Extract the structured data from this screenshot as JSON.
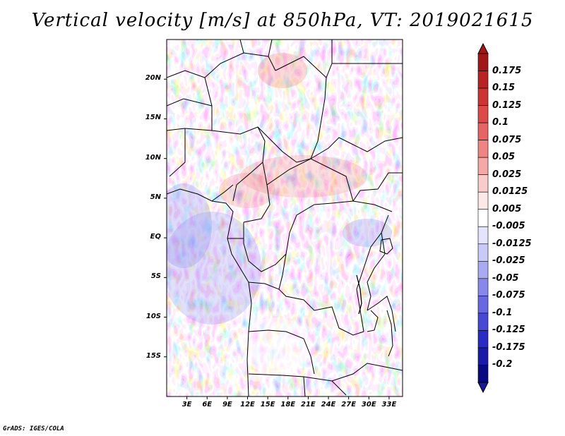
{
  "title": "Vertical velocity [m/s] at 850hPa, VT: 2019021615",
  "credit": "GrADS: IGES/COLA",
  "map": {
    "lon_range": [
      0,
      35
    ],
    "lat_range": [
      -20,
      25
    ],
    "lat_ticks": [
      "20N",
      "15N",
      "10N",
      "5N",
      "EQ",
      "5S",
      "10S",
      "15S"
    ],
    "lat_tick_values": [
      20,
      15,
      10,
      5,
      0,
      -5,
      -10,
      -15
    ],
    "lon_ticks": [
      "3E",
      "6E",
      "9E",
      "12E",
      "15E",
      "18E",
      "21E",
      "24E",
      "27E",
      "30E",
      "33E"
    ],
    "lon_tick_values": [
      3,
      6,
      9,
      12,
      15,
      18,
      21,
      24,
      27,
      30,
      33
    ],
    "field_colors": {
      "strong_up": "#c92a2a",
      "up": "#f08080",
      "weak_up": "#fbd0d0",
      "neutral": "#ffffff",
      "weak_down": "#d6d6fa",
      "down": "#8f8fef",
      "strong_down": "#3a3ad0"
    }
  },
  "colorbar": {
    "labels": [
      "0.175",
      "0.15",
      "0.125",
      "0.1",
      "0.075",
      "0.05",
      "0.025",
      "0.0125",
      "0.005",
      "-0.005",
      "-0.0125",
      "-0.025",
      "-0.05",
      "-0.075",
      "-0.1",
      "-0.125",
      "-0.175",
      "-0.2"
    ],
    "colors": [
      "#a01818",
      "#b82424",
      "#cc3434",
      "#dc4a4a",
      "#e66464",
      "#ee8484",
      "#f4a8a8",
      "#f9cccc",
      "#fde8e8",
      "#ffffff",
      "#e4e4fc",
      "#cacaf8",
      "#aaaaf2",
      "#8888ea",
      "#6868e0",
      "#4848d4",
      "#2a2ac4",
      "#1a1aa8",
      "#0a0a80"
    ],
    "top_arrow_color": "#a01818",
    "bottom_arrow_color": "#1a1a9a"
  }
}
